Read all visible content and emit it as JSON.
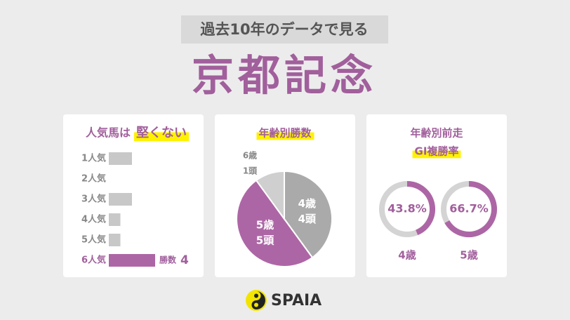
{
  "header": {
    "subtitle": "過去10年のデータで見る",
    "title": "京都記念"
  },
  "chart_data": [
    {
      "type": "hbar",
      "title": "人気馬は",
      "title_highlight": "堅くない",
      "categories": [
        "1人気",
        "2人気",
        "3人気",
        "4人気",
        "5人気",
        "6人気"
      ],
      "values": [
        2,
        0,
        2,
        1,
        1,
        4
      ],
      "xlim": [
        0,
        4
      ],
      "colors": [
        "#c8c8c8",
        "#c8c8c8",
        "#c8c8c8",
        "#c8c8c8",
        "#c8c8c8",
        "#ad66a5"
      ],
      "value_prefix": "勝数"
    },
    {
      "type": "pie",
      "title": "年齢別勝数",
      "categories": [
        "4歳",
        "5歳",
        "6歳"
      ],
      "values": [
        4,
        5,
        1
      ],
      "value_labels": [
        "4頭",
        "5頭",
        "1頭"
      ],
      "colors": [
        "#aaaaaa",
        "#ad66a5",
        "#cfcfcf"
      ]
    },
    {
      "type": "donut",
      "title": "年齢別前走",
      "title_highlight": "GⅠ複勝率",
      "categories": [
        "4歳",
        "5歳"
      ],
      "values": [
        43.8,
        66.7
      ],
      "value_labels": [
        "43.8%",
        "66.7%"
      ],
      "ylim": [
        0,
        100
      ],
      "color": "#ad66a5",
      "track_color": "#d4d4d4"
    }
  ],
  "footer": {
    "logo": "SPAIA"
  }
}
